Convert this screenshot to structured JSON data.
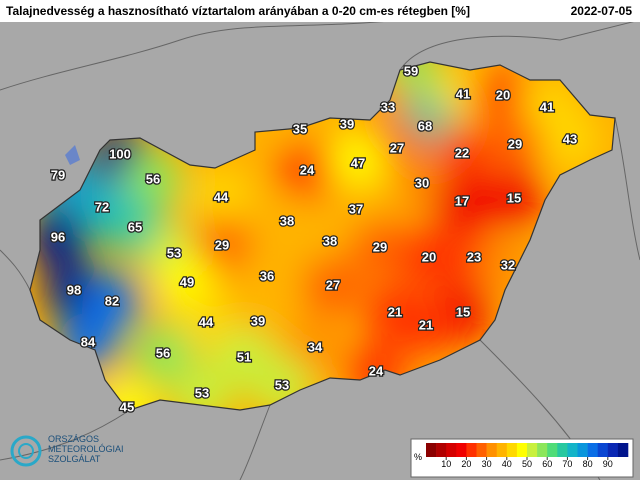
{
  "header": {
    "title": "Talajnedvesség a hasznosítható víztartalom arányában a 0-20 cm-es rétegben [%]",
    "date": "2022-07-05"
  },
  "stations": [
    59,
    41,
    20,
    41,
    33,
    68,
    35,
    39,
    27,
    22,
    29,
    43,
    100,
    79,
    56,
    24,
    47,
    30,
    17,
    15,
    72,
    44,
    38,
    37,
    65,
    96,
    53,
    29,
    38,
    29,
    20,
    23,
    32,
    49,
    36,
    27,
    98,
    82,
    21,
    15,
    44,
    39,
    21,
    84,
    56,
    51,
    34,
    24,
    53,
    53,
    45
  ],
  "colorbar": {
    "unit": "%",
    "ticks": [
      10,
      20,
      30,
      40,
      50,
      60,
      70,
      80,
      90
    ],
    "lim": [
      0,
      100
    ],
    "colors": [
      "#8b0000",
      "#b00000",
      "#d40000",
      "#f00000",
      "#ff3000",
      "#ff6000",
      "#ff9000",
      "#ffb400",
      "#ffd800",
      "#ffff00",
      "#c8f03c",
      "#8ce65a",
      "#50dc78",
      "#28c8a0",
      "#14b4c8",
      "#0a96dc",
      "#0a6ee6",
      "#0a46d2",
      "#0a28b4",
      "#00148c"
    ]
  },
  "logo": {
    "line1": "ORSZÁGOS",
    "line2": "METEOROLÓGIAI",
    "line3": "SZOLGÁLAT"
  }
}
